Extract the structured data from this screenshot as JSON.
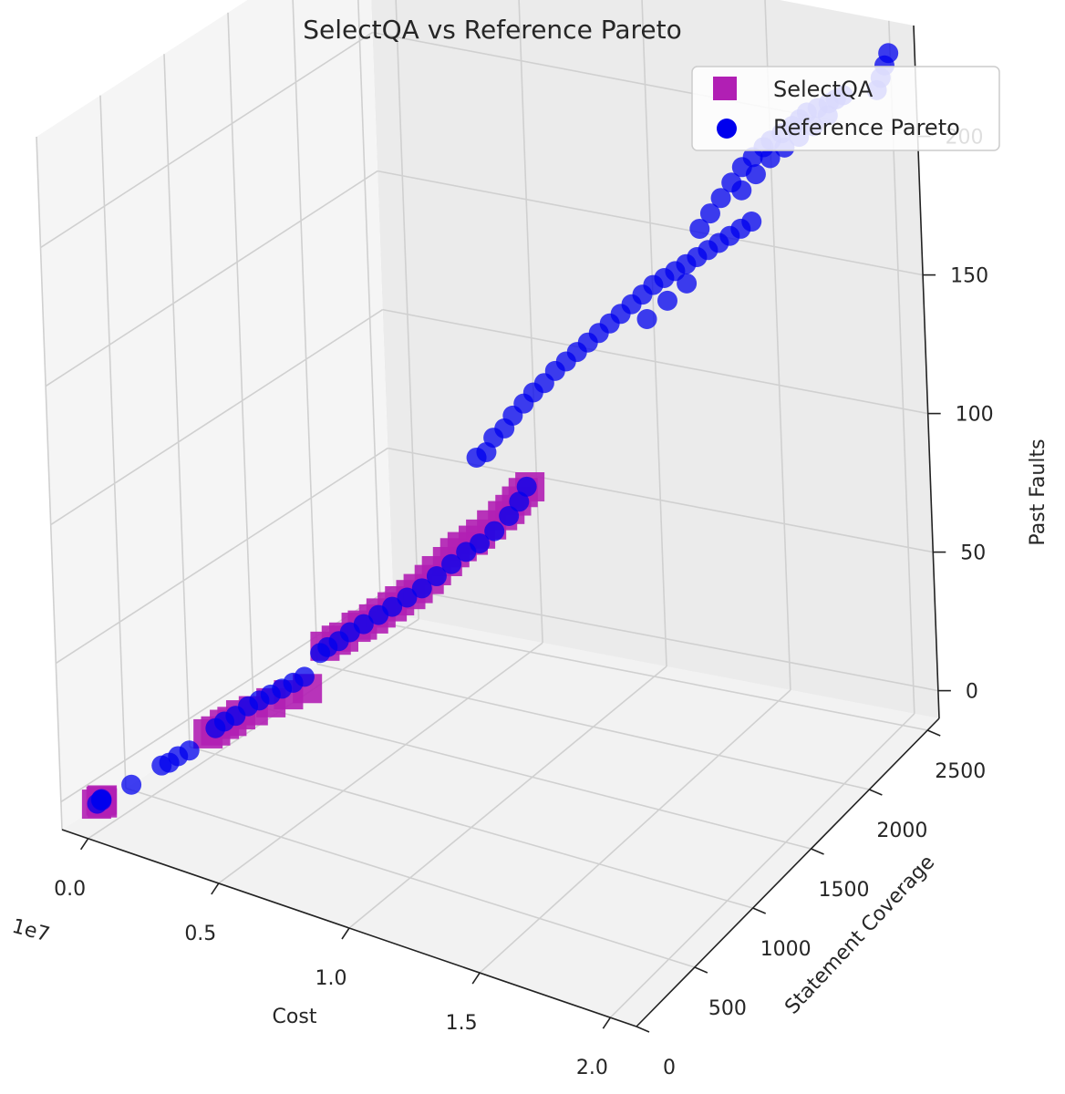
{
  "chart_data": {
    "type": "scatter3d",
    "title": "SelectQA vs Reference Pareto",
    "xlabel": "Cost",
    "ylabel": "Statement Coverage",
    "zlabel": "Past Faults",
    "x_offset_label": "1e7",
    "xlim": [
      -0.1,
      2.1
    ],
    "ylim": [
      0,
      2600
    ],
    "zlim": [
      -10,
      240
    ],
    "x_ticks": [
      0.0,
      0.5,
      1.0,
      1.5,
      2.0
    ],
    "x_tick_labels": [
      "0.0",
      "0.5",
      "1.0",
      "1.5",
      "2.0"
    ],
    "y_ticks": [
      0,
      500,
      1000,
      1500,
      2000,
      2500
    ],
    "y_tick_labels": [
      "0",
      "500",
      "1000",
      "1500",
      "2000",
      "2500"
    ],
    "z_ticks": [
      0,
      50,
      100,
      150,
      200
    ],
    "z_tick_labels": [
      "0",
      "50",
      "100",
      "150",
      "200"
    ],
    "grid": true,
    "legend_position": "top-right",
    "series": [
      {
        "name": "SelectQA",
        "marker": "square",
        "color": "#b11fb4",
        "points": [
          [
            0.02,
            35,
            2
          ],
          [
            0.03,
            50,
            3
          ],
          [
            0.04,
            40,
            4
          ],
          [
            0.03,
            60,
            2
          ],
          [
            0.28,
            400,
            24
          ],
          [
            0.3,
            420,
            25
          ],
          [
            0.32,
            450,
            27
          ],
          [
            0.34,
            470,
            28
          ],
          [
            0.36,
            500,
            30
          ],
          [
            0.4,
            520,
            32
          ],
          [
            0.45,
            560,
            35
          ],
          [
            0.5,
            600,
            38
          ],
          [
            0.55,
            650,
            40
          ],
          [
            0.6,
            700,
            55
          ],
          [
            0.63,
            730,
            57
          ],
          [
            0.65,
            750,
            58
          ],
          [
            0.68,
            790,
            61
          ],
          [
            0.7,
            800,
            62
          ],
          [
            0.73,
            830,
            64
          ],
          [
            0.75,
            850,
            66
          ],
          [
            0.78,
            880,
            68
          ],
          [
            0.8,
            900,
            70
          ],
          [
            0.83,
            930,
            72
          ],
          [
            0.85,
            950,
            74
          ],
          [
            0.88,
            980,
            77
          ],
          [
            0.9,
            1000,
            80
          ],
          [
            0.93,
            1030,
            83
          ],
          [
            0.95,
            1050,
            86
          ],
          [
            0.97,
            1070,
            88
          ],
          [
            1.0,
            1100,
            90
          ],
          [
            1.02,
            1120,
            92
          ],
          [
            1.05,
            1150,
            95
          ],
          [
            1.08,
            1180,
            98
          ],
          [
            1.1,
            1200,
            100
          ],
          [
            1.12,
            1215,
            103
          ],
          [
            1.14,
            1230,
            106
          ],
          [
            1.16,
            1245,
            108
          ]
        ]
      },
      {
        "name": "Reference Pareto",
        "marker": "circle",
        "color": "#0000ee",
        "points": [
          [
            0.02,
            40,
            2
          ],
          [
            0.03,
            55,
            3
          ],
          [
            0.035,
            45,
            4
          ],
          [
            0.025,
            60,
            3
          ],
          [
            0.1,
            150,
            8
          ],
          [
            0.17,
            250,
            14
          ],
          [
            0.19,
            270,
            15
          ],
          [
            0.21,
            300,
            17
          ],
          [
            0.24,
            330,
            19
          ],
          [
            0.3,
            420,
            26
          ],
          [
            0.32,
            450,
            28
          ],
          [
            0.35,
            480,
            30
          ],
          [
            0.38,
            520,
            33
          ],
          [
            0.41,
            550,
            35
          ],
          [
            0.44,
            580,
            37
          ],
          [
            0.47,
            610,
            39
          ],
          [
            0.5,
            640,
            41
          ],
          [
            0.53,
            670,
            43
          ],
          [
            0.58,
            700,
            52
          ],
          [
            0.6,
            720,
            54
          ],
          [
            0.63,
            750,
            56
          ],
          [
            0.66,
            780,
            59
          ],
          [
            0.7,
            810,
            62
          ],
          [
            0.74,
            850,
            65
          ],
          [
            0.78,
            880,
            68
          ],
          [
            0.82,
            920,
            71
          ],
          [
            0.86,
            960,
            74
          ],
          [
            0.9,
            1000,
            78
          ],
          [
            0.94,
            1040,
            82
          ],
          [
            0.98,
            1080,
            86
          ],
          [
            1.02,
            1110,
            89
          ],
          [
            1.06,
            1150,
            93
          ],
          [
            1.1,
            1190,
            98
          ],
          [
            1.13,
            1215,
            103
          ],
          [
            1.15,
            1240,
            108
          ],
          [
            1.0,
            1150,
            118
          ],
          [
            1.03,
            1170,
            120
          ],
          [
            1.05,
            1190,
            125
          ],
          [
            1.08,
            1220,
            128
          ],
          [
            1.1,
            1250,
            132
          ],
          [
            1.13,
            1280,
            136
          ],
          [
            1.16,
            1300,
            140
          ],
          [
            1.19,
            1330,
            143
          ],
          [
            1.22,
            1360,
            147
          ],
          [
            1.25,
            1390,
            150
          ],
          [
            1.28,
            1420,
            153
          ],
          [
            1.31,
            1450,
            156
          ],
          [
            1.34,
            1480,
            159
          ],
          [
            1.37,
            1510,
            162
          ],
          [
            1.4,
            1540,
            165
          ],
          [
            1.43,
            1570,
            168
          ],
          [
            1.46,
            1600,
            171
          ],
          [
            1.49,
            1630,
            174
          ],
          [
            1.52,
            1660,
            176
          ],
          [
            1.55,
            1690,
            178
          ],
          [
            1.58,
            1720,
            180
          ],
          [
            1.61,
            1750,
            182
          ],
          [
            1.64,
            1780,
            184
          ],
          [
            1.67,
            1810,
            186
          ],
          [
            1.7,
            1840,
            188
          ],
          [
            1.73,
            1870,
            190
          ],
          [
            1.76,
            1900,
            192
          ],
          [
            1.45,
            1650,
            160
          ],
          [
            1.5,
            1720,
            165
          ],
          [
            1.55,
            1780,
            170
          ],
          [
            1.6,
            1800,
            190
          ],
          [
            1.63,
            1830,
            195
          ],
          [
            1.66,
            1860,
            200
          ],
          [
            1.69,
            1890,
            205
          ],
          [
            1.72,
            1920,
            210
          ],
          [
            1.75,
            1950,
            213
          ],
          [
            1.78,
            1980,
            216
          ],
          [
            1.8,
            2000,
            218
          ],
          [
            1.83,
            2030,
            220
          ],
          [
            1.86,
            2060,
            222
          ],
          [
            1.88,
            2080,
            224
          ],
          [
            1.9,
            2100,
            226
          ],
          [
            1.93,
            2130,
            227
          ],
          [
            1.96,
            2160,
            228
          ],
          [
            1.98,
            2180,
            229
          ],
          [
            2.0,
            2200,
            230
          ],
          [
            1.7,
            1950,
            200
          ],
          [
            1.74,
            1990,
            205
          ],
          [
            1.78,
            2030,
            210
          ],
          [
            1.82,
            2070,
            213
          ],
          [
            1.86,
            2110,
            216
          ],
          [
            1.9,
            2150,
            219
          ],
          [
            1.94,
            2190,
            222
          ],
          [
            1.98,
            2520,
            218
          ],
          [
            1.99,
            2535,
            222
          ],
          [
            2.0,
            2550,
            226
          ],
          [
            2.01,
            2565,
            230
          ]
        ]
      }
    ]
  }
}
